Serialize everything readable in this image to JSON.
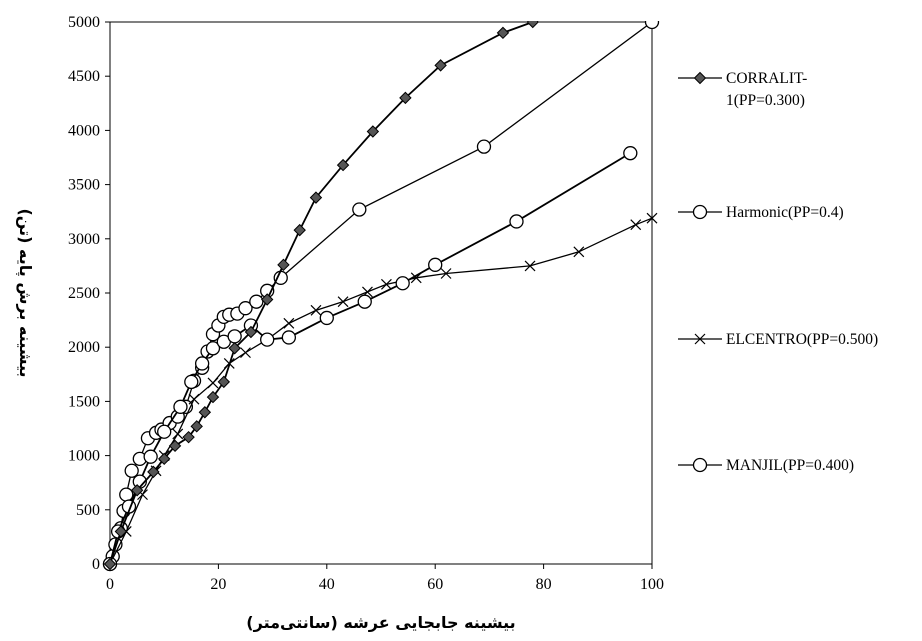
{
  "chart_data": {
    "type": "line",
    "title": "",
    "xlabel": "بیشینه جابجایی عرشه (سانتی‌متر)",
    "ylabel": "بیشینه برش پایه (تن)",
    "xlim": [
      0,
      100
    ],
    "ylim": [
      0,
      5000
    ],
    "xticks": [
      "0",
      "20",
      "40",
      "60",
      "80",
      "100"
    ],
    "yticks": [
      "0",
      "500",
      "1000",
      "1500",
      "2000",
      "2500",
      "3000",
      "3500",
      "4000",
      "4500",
      "5000"
    ],
    "grid": false,
    "legend_position": "right",
    "series": [
      {
        "name": "CORRALIT-1(PP=0.300)",
        "marker": "diamond",
        "color": "#000000",
        "x": [
          0,
          2,
          5,
          8,
          10,
          12,
          14.5,
          16,
          17.5,
          19,
          21,
          23,
          26,
          29,
          32,
          35,
          38,
          43,
          48.5,
          54.5,
          61,
          72.5,
          78
        ],
        "y": [
          0,
          300,
          680,
          850,
          970,
          1090,
          1170,
          1270,
          1400,
          1540,
          1680,
          1990,
          2140,
          2440,
          2760,
          3080,
          3380,
          3680,
          3990,
          4300,
          4600,
          4900,
          5000
        ]
      },
      {
        "name": "Harmonic(PP=0.4)",
        "marker": "circle",
        "color": "#000000",
        "x": [
          0,
          1.5,
          3.5,
          5.5,
          7.5,
          10,
          13,
          15,
          17,
          19,
          21,
          23,
          26,
          29,
          33,
          40,
          47,
          54,
          60,
          75,
          96
        ],
        "y": [
          0,
          300,
          530,
          760,
          990,
          1220,
          1450,
          1680,
          1850,
          1990,
          2050,
          2100,
          2200,
          2070,
          2090,
          2270,
          2420,
          2590,
          2760,
          3160,
          3790
        ]
      },
      {
        "name": "ELCENTRO(PP=0.500)",
        "marker": "x",
        "color": "#000000",
        "x": [
          0,
          3,
          6,
          8.5,
          10,
          12.5,
          15.5,
          19,
          22,
          25,
          29,
          33,
          38,
          43,
          47.5,
          51,
          56.5,
          62,
          77.5,
          86.5,
          97,
          100
        ],
        "y": [
          0,
          300,
          640,
          860,
          1000,
          1200,
          1520,
          1670,
          1850,
          1950,
          2070,
          2220,
          2340,
          2420,
          2510,
          2580,
          2640,
          2680,
          2750,
          2880,
          3130,
          3190
        ]
      },
      {
        "name": "MANJIL(PP=0.400)",
        "marker": "circle",
        "color": "#000000",
        "x": [
          0,
          0.5,
          1,
          2,
          2.5,
          3,
          4,
          5.5,
          7,
          8.5,
          9.5,
          11,
          12.5,
          14,
          15.5,
          17,
          18,
          19,
          20,
          21,
          22,
          23.5,
          25,
          27,
          29,
          31.5,
          46,
          69,
          100
        ],
        "y": [
          0,
          70,
          180,
          330,
          490,
          640,
          860,
          970,
          1160,
          1210,
          1240,
          1300,
          1360,
          1450,
          1690,
          1810,
          1960,
          2120,
          2200,
          2280,
          2300,
          2310,
          2360,
          2420,
          2520,
          2640,
          3270,
          3850,
          5000
        ]
      }
    ]
  }
}
